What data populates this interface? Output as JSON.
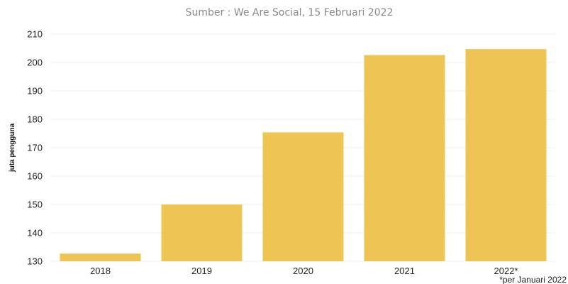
{
  "chart_data": {
    "type": "bar",
    "title": "",
    "subtitle": "Sumber : We Are Social, 15 Februari 2022",
    "xlabel": "",
    "ylabel": "juta pengguna",
    "categories": [
      "2018",
      "2019",
      "2020",
      "2021",
      "2022*"
    ],
    "values": [
      132.7,
      150.0,
      175.4,
      202.6,
      204.7
    ],
    "ylim": [
      130,
      210
    ],
    "yticks": [
      130,
      140,
      150,
      160,
      170,
      180,
      190,
      200,
      210
    ],
    "grid": true,
    "legend": "none",
    "bar_color": "#eec454",
    "footnote": "*per Januari 2022"
  }
}
